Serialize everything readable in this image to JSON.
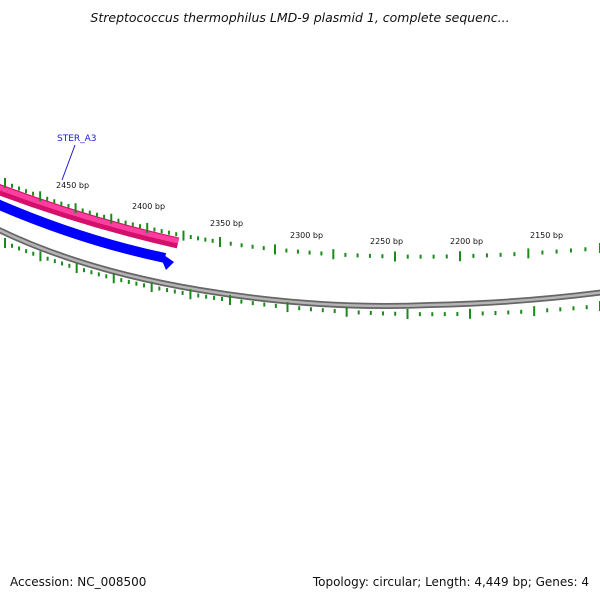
{
  "title": "Streptococcus thermophilus LMD-9 plasmid 1, complete sequenc...",
  "footer": {
    "accession": "Accession: NC_008500",
    "summary": "Topology: circular; Length: 4,449 bp; Genes: 4"
  },
  "map": {
    "gene_label": "STER_A3",
    "tick_labels": [
      "2450 bp",
      "2400 bp",
      "2350 bp",
      "2300 bp",
      "2250 bp",
      "2200 bp",
      "2150 bp"
    ],
    "colors": {
      "gene_magenta": "#ff1493",
      "gene_blue": "#0000ff",
      "backbone": "#808080",
      "ticks": "#1a8a1a",
      "label_blue": "#1a1acc"
    }
  }
}
